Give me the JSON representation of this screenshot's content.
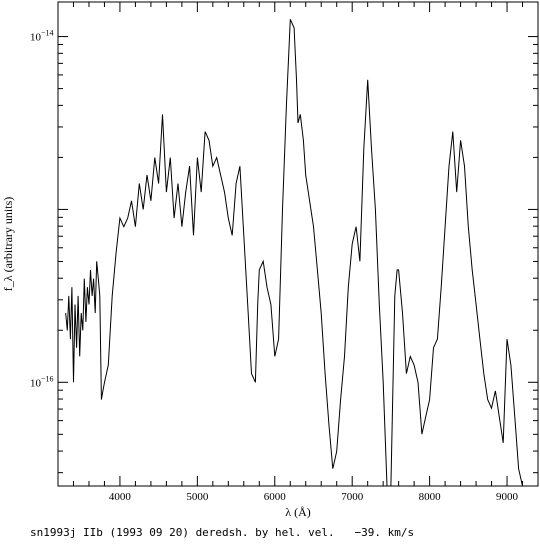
{
  "chart_data": {
    "type": "line",
    "title": "",
    "xlabel": "λ (Å)",
    "ylabel": "f_λ (arbitrary units)",
    "y_scale": "log",
    "xlim": [
      3200,
      9400
    ],
    "ylim_log10": [
      -16.6,
      -13.8
    ],
    "x_ticks": [
      {
        "value": 4000,
        "label": "4000"
      },
      {
        "value": 5000,
        "label": "5000"
      },
      {
        "value": 6000,
        "label": "6000"
      },
      {
        "value": 7000,
        "label": "7000"
      },
      {
        "value": 8000,
        "label": "8000"
      },
      {
        "value": 9000,
        "label": "9000"
      }
    ],
    "y_ticks": [
      {
        "log10": -14,
        "base": "10",
        "exp": "−14"
      },
      {
        "log10": -16,
        "base": "10",
        "exp": "−16"
      }
    ],
    "grid": false,
    "series": [
      {
        "color": "#000000",
        "x": [
          3300,
          3320,
          3340,
          3360,
          3380,
          3400,
          3420,
          3440,
          3460,
          3480,
          3500,
          3520,
          3540,
          3560,
          3580,
          3600,
          3620,
          3640,
          3660,
          3680,
          3700,
          3720,
          3740,
          3760,
          3780,
          3800,
          3850,
          3900,
          3950,
          4000,
          4050,
          4100,
          4150,
          4200,
          4250,
          4300,
          4350,
          4400,
          4450,
          4500,
          4550,
          4600,
          4650,
          4700,
          4750,
          4800,
          4850,
          4900,
          4950,
          5000,
          5050,
          5100,
          5150,
          5200,
          5250,
          5300,
          5350,
          5400,
          5450,
          5500,
          5550,
          5600,
          5650,
          5700,
          5750,
          5780,
          5800,
          5850,
          5900,
          5950,
          6000,
          6050,
          6100,
          6150,
          6200,
          6250,
          6280,
          6300,
          6330,
          6370,
          6400,
          6450,
          6500,
          6550,
          6600,
          6650,
          6700,
          6750,
          6800,
          6850,
          6900,
          6950,
          7000,
          7050,
          7100,
          7150,
          7200,
          7250,
          7300,
          7350,
          7400,
          7450,
          7500,
          7550,
          7580,
          7600,
          7650,
          7700,
          7750,
          7800,
          7850,
          7900,
          7950,
          8000,
          8050,
          8100,
          8150,
          8200,
          8250,
          8300,
          8350,
          8400,
          8450,
          8500,
          8550,
          8600,
          8650,
          8700,
          8750,
          8800,
          8850,
          8900,
          8950,
          9000,
          9050,
          9100,
          9150,
          9200
        ],
        "log10": [
          -15.6,
          -15.7,
          -15.5,
          -15.75,
          -15.45,
          -16.0,
          -15.55,
          -15.8,
          -15.5,
          -15.85,
          -15.6,
          -15.7,
          -15.4,
          -15.65,
          -15.45,
          -15.55,
          -15.35,
          -15.5,
          -15.4,
          -15.6,
          -15.3,
          -15.4,
          -15.5,
          -16.1,
          -16.05,
          -16.0,
          -15.9,
          -15.5,
          -15.25,
          -15.05,
          -15.1,
          -15.05,
          -14.95,
          -15.1,
          -14.85,
          -15.0,
          -14.8,
          -14.95,
          -14.7,
          -14.85,
          -14.45,
          -14.9,
          -14.7,
          -15.05,
          -14.85,
          -15.1,
          -14.9,
          -14.75,
          -15.15,
          -14.7,
          -14.9,
          -14.55,
          -14.6,
          -14.75,
          -14.7,
          -14.8,
          -14.9,
          -15.05,
          -15.15,
          -14.85,
          -14.75,
          -15.15,
          -15.55,
          -15.95,
          -16.0,
          -15.55,
          -15.35,
          -15.3,
          -15.45,
          -15.55,
          -15.85,
          -15.75,
          -15.0,
          -14.4,
          -13.9,
          -13.95,
          -14.25,
          -14.5,
          -14.45,
          -14.6,
          -14.8,
          -14.95,
          -15.1,
          -15.35,
          -15.6,
          -15.95,
          -16.25,
          -16.5,
          -16.4,
          -16.1,
          -15.85,
          -15.45,
          -15.2,
          -15.1,
          -15.3,
          -14.65,
          -14.25,
          -14.65,
          -15.0,
          -15.55,
          -16.0,
          -16.7,
          -16.9,
          -15.5,
          -15.35,
          -15.35,
          -15.6,
          -15.95,
          -15.85,
          -15.9,
          -16.0,
          -16.3,
          -16.2,
          -16.1,
          -15.8,
          -15.75,
          -15.45,
          -15.1,
          -14.75,
          -14.55,
          -14.9,
          -14.6,
          -14.75,
          -15.1,
          -15.35,
          -15.55,
          -15.75,
          -15.95,
          -16.1,
          -16.15,
          -16.05,
          -16.2,
          -16.35,
          -15.75,
          -15.9,
          -16.2,
          -16.5,
          -16.75
        ],
        "note_x_hidden": ""
      }
    ]
  },
  "caption": "sn1993j IIb (1993 09 20) deredsh. by hel. vel.   −39. km/s"
}
